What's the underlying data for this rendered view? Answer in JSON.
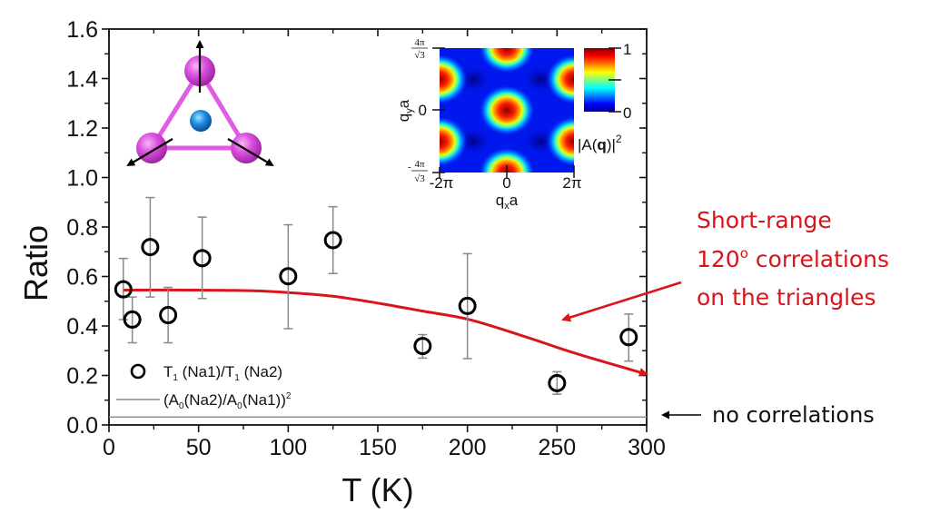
{
  "chart_data": {
    "type": "scatter",
    "title": "",
    "xlabel": "T (K)",
    "ylabel": "Ratio",
    "xlim": [
      0,
      300
    ],
    "ylim": [
      0,
      1.6
    ],
    "x_ticks": [
      0,
      50,
      100,
      150,
      200,
      250,
      300
    ],
    "x_tick_labels": [
      "0",
      "50",
      "100",
      "150",
      "200",
      "250",
      "300"
    ],
    "y_ticks": [
      0.0,
      0.2,
      0.4,
      0.6,
      0.8,
      1.0,
      1.2,
      1.4,
      1.6
    ],
    "y_tick_labels": [
      "0.0",
      "0.2",
      "0.4",
      "0.6",
      "0.8",
      "1.0",
      "1.2",
      "1.4",
      "1.6"
    ],
    "grid": false,
    "legend_position": "bottom-left",
    "series": [
      {
        "name": "T1 (Na1)/T1 (Na2)",
        "legend_label": "T",
        "legend_parts": [
          "T",
          "1",
          " (Na1)/T",
          "1",
          " (Na2)"
        ],
        "kind": "scatter-errorbar",
        "marker": "open-circle",
        "color": "#000000",
        "errorbar_color": "#888888",
        "points": [
          {
            "x": 8,
            "y": 0.548,
            "err_low": 0.426,
            "err_high": 0.673
          },
          {
            "x": 13,
            "y": 0.426,
            "err_low": 0.332,
            "err_high": 0.517
          },
          {
            "x": 23,
            "y": 0.719,
            "err_low": 0.517,
            "err_high": 0.919
          },
          {
            "x": 33,
            "y": 0.444,
            "err_low": 0.332,
            "err_high": 0.556
          },
          {
            "x": 52,
            "y": 0.674,
            "err_low": 0.511,
            "err_high": 0.84
          },
          {
            "x": 100,
            "y": 0.601,
            "err_low": 0.389,
            "err_high": 0.809
          },
          {
            "x": 125,
            "y": 0.747,
            "err_low": 0.612,
            "err_high": 0.882
          },
          {
            "x": 175,
            "y": 0.319,
            "err_low": 0.27,
            "err_high": 0.365
          },
          {
            "x": 200,
            "y": 0.481,
            "err_low": 0.268,
            "err_high": 0.692
          },
          {
            "x": 250,
            "y": 0.169,
            "err_low": 0.124,
            "err_high": 0.215
          },
          {
            "x": 290,
            "y": 0.355,
            "err_low": 0.258,
            "err_high": 0.448
          }
        ]
      },
      {
        "name": "(A0(Na2)/A0(Na1))^2",
        "legend_parts": [
          "(A",
          "0",
          "(Na2)/A",
          "0",
          "(Na1))",
          "2"
        ],
        "kind": "hline",
        "color": "#888888",
        "y": 0.032
      },
      {
        "name": "Short-range 120° correlations model",
        "kind": "line",
        "color": "#d9141b",
        "x": [
          8,
          50,
          81,
          100,
          125,
          152,
          175,
          201,
          233,
          260,
          300
        ],
        "y": [
          0.545,
          0.545,
          0.542,
          0.535,
          0.52,
          0.49,
          0.46,
          0.426,
          0.355,
          0.29,
          0.205
        ]
      }
    ],
    "annotations": [
      {
        "name": "short-range",
        "lines": [
          "Short-range",
          "120",
          " correlations",
          "on the triangles"
        ],
        "superscript": "o",
        "color": "#d9141b",
        "points_to": {
          "x": 152,
          "y": 0.42
        }
      },
      {
        "name": "no-correlations",
        "text": "no correlations",
        "color": "#111111",
        "points_to": {
          "x": 300,
          "y": 0.032
        }
      }
    ],
    "inset_heatmap": {
      "type": "heatmap",
      "xlabel": "q",
      "xlabel_sub": "x",
      "xlabel_suffix": "a",
      "ylabel": "q",
      "ylabel_sub": "y",
      "ylabel_suffix": "a",
      "x_tick_labels": [
        "-2π",
        "0",
        "2π"
      ],
      "y_tick_labels": [
        "4π/√3",
        "0",
        "-4π/√3"
      ],
      "y_frac_num": "4π",
      "y_frac_den": "√3",
      "colorbar_min_label": "0",
      "colorbar_max_label": "1",
      "colorbar_title": "|A(q)|",
      "colorbar_title_bold": "q",
      "colorbar_title_sup": "2",
      "colormap": "jet"
    },
    "inset_structure": {
      "description": "triangle of three magenta atoms with central blue atom, arrows showing 120° spin directions",
      "atom_color": "#d23fd6",
      "bond_color": "#e05ce3",
      "center_atom_color": "#1e74c9"
    }
  }
}
